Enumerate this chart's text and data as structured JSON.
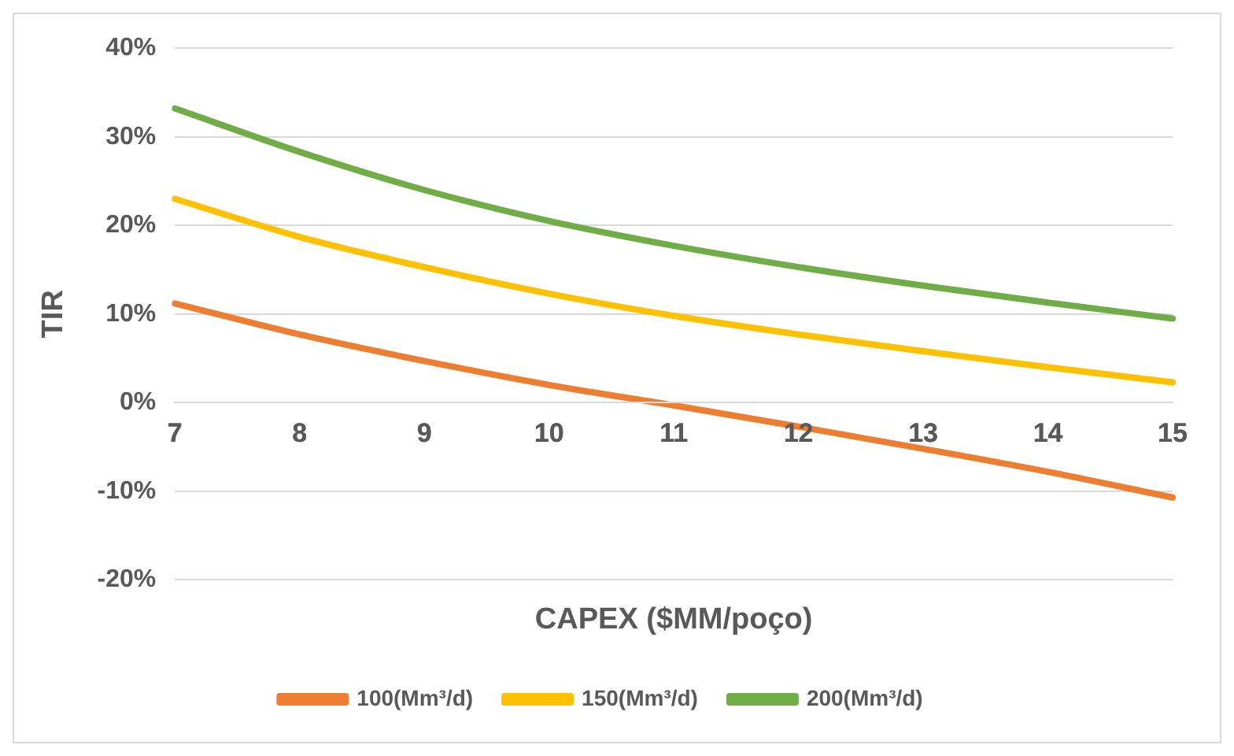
{
  "chart_data": {
    "type": "line",
    "xlabel": "CAPEX ($MM/poço)",
    "ylabel": "TIR",
    "categories": [
      "7",
      "8",
      "9",
      "10",
      "11",
      "12",
      "13",
      "14",
      "15"
    ],
    "series": [
      {
        "name": "100(Mm³/d)",
        "color": "#ed7d31",
        "values": [
          11.2,
          7.7,
          4.7,
          2.0,
          -0.3,
          -2.7,
          -5.2,
          -7.8,
          -10.7
        ]
      },
      {
        "name": "150(Mm³/d)",
        "color": "#ffc000",
        "values": [
          23.0,
          18.7,
          15.3,
          12.3,
          9.8,
          7.7,
          5.8,
          4.0,
          2.3
        ]
      },
      {
        "name": "200(Mm³/d)",
        "color": "#70ad47",
        "values": [
          33.2,
          28.3,
          24.0,
          20.5,
          17.7,
          15.3,
          13.2,
          11.3,
          9.5
        ]
      }
    ],
    "ylim": [
      -20,
      40
    ],
    "yticks": [
      {
        "value": -20,
        "label": "-20%"
      },
      {
        "value": -10,
        "label": "-10%"
      },
      {
        "value": 0,
        "label": "0%"
      },
      {
        "value": 10,
        "label": "10%"
      },
      {
        "value": 20,
        "label": "20%"
      },
      {
        "value": 30,
        "label": "30%"
      },
      {
        "value": 40,
        "label": "40%"
      }
    ],
    "grid": "y",
    "legend": "bottom",
    "marker": "none",
    "line_style": "solid"
  }
}
